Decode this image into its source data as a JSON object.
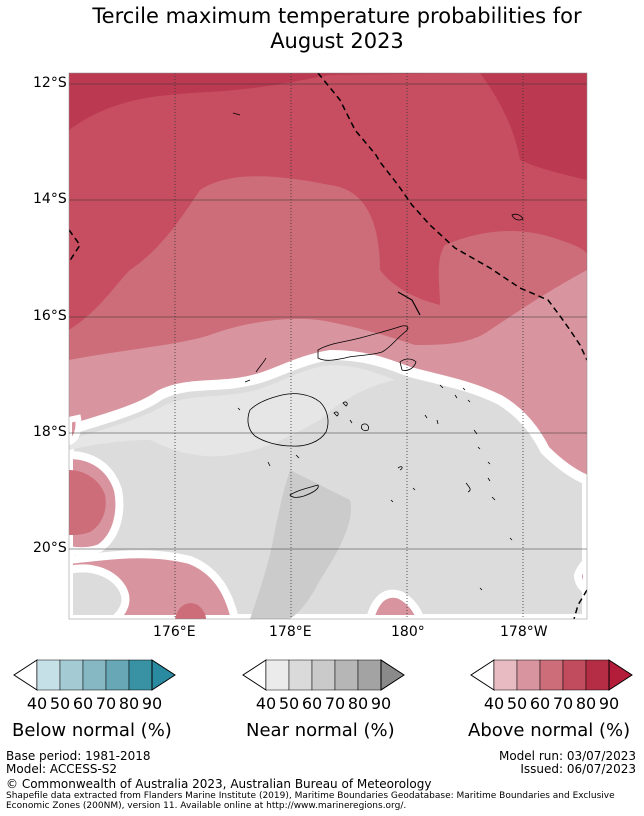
{
  "title": {
    "line1": "Tercile maximum temperature probabilities for",
    "line2": "August 2023"
  },
  "axes": {
    "lat_labels": [
      "12°S",
      "14°S",
      "16°S",
      "18°S",
      "20°S"
    ],
    "lon_labels": [
      "176°E",
      "178°E",
      "180°",
      "178°W"
    ]
  },
  "legend": {
    "ticks": [
      "40",
      "50",
      "60",
      "70",
      "80",
      "90"
    ],
    "below": {
      "title": "Below normal (%)",
      "colors": [
        "#ffffff",
        "#c6e0e8",
        "#a4cbd4",
        "#86b8c4",
        "#67a7b6",
        "#3991a4",
        "#2a8aa0"
      ]
    },
    "near": {
      "title": "Near normal (%)",
      "colors": [
        "#ffffff",
        "#ebebeb",
        "#dadada",
        "#cacaca",
        "#b6b6b6",
        "#a3a3a3",
        "#8a8a8a"
      ]
    },
    "above": {
      "title": "Above normal (%)",
      "colors": [
        "#ffffff",
        "#e8bbc3",
        "#d9959f",
        "#cd6d79",
        "#c14c5d",
        "#b52d45",
        "#b31d3a"
      ]
    }
  },
  "footer": {
    "base_period": "Base period: 1981-2018",
    "model": "Model: ACCESS-S2",
    "model_run": "Model run: 03/07/2023",
    "issued": "Issued: 06/07/2023",
    "copyright": "© Commonwealth of Australia 2023, Australian Bureau of Meteorology",
    "attribution": "Shapefile data extracted from Flanders Marine Institute (2019), Maritime Boundaries Geodatabase: Maritime Boundaries and Exclusive Economic Zones (200NM), version 11. Available online at http://www.marineregions.org/."
  }
}
